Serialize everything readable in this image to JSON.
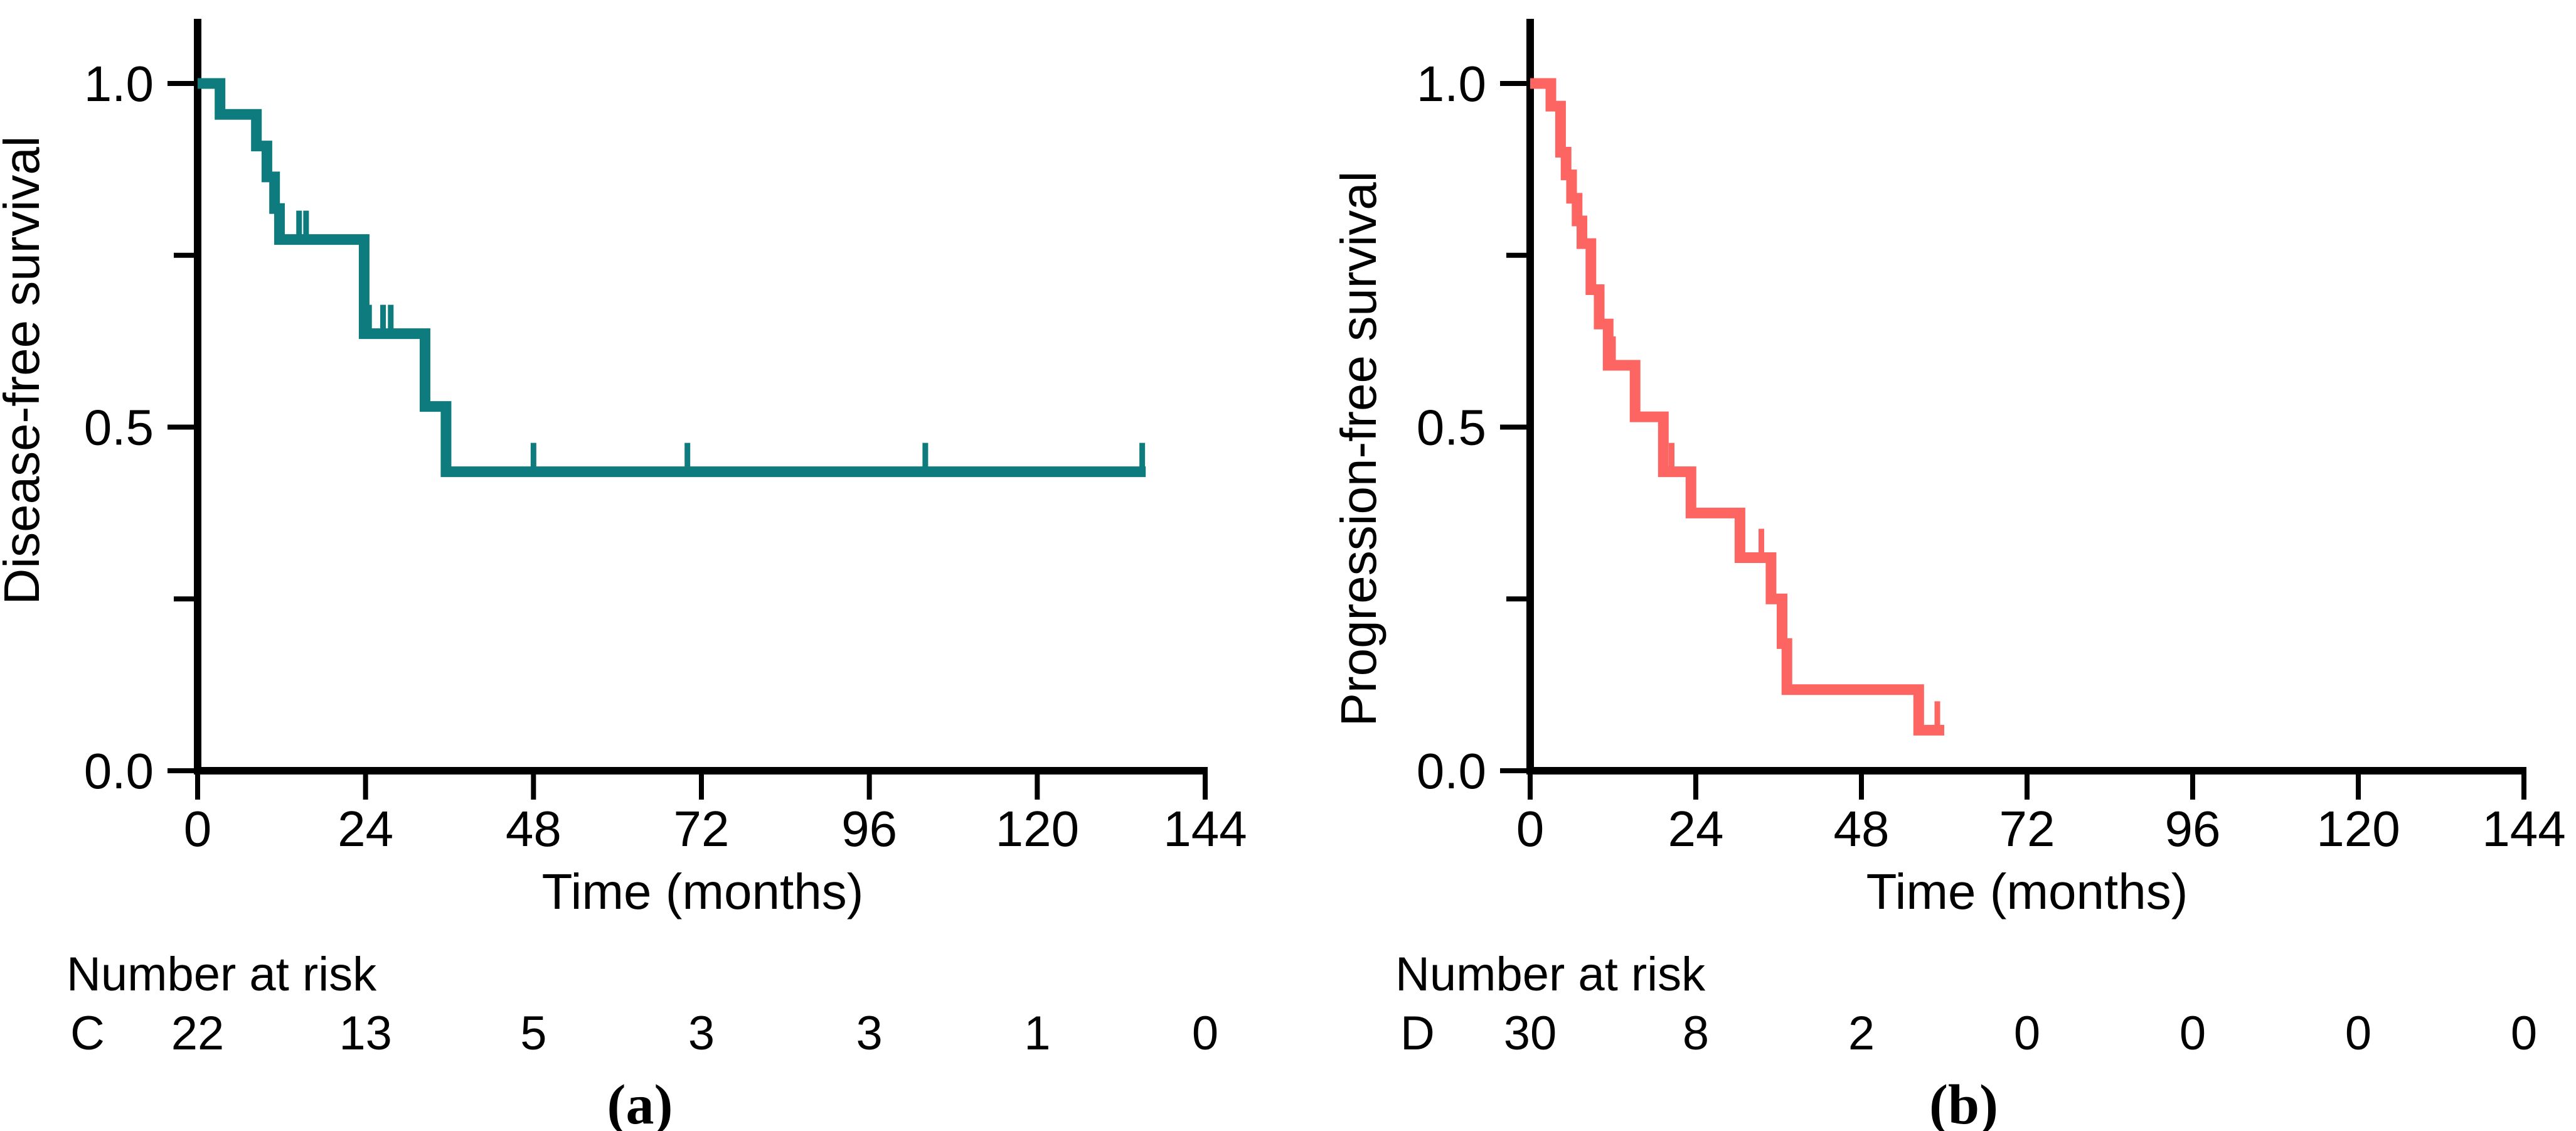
{
  "figure": {
    "background": "#ffffff",
    "axis_color": "#000000",
    "text_color": "#000000"
  },
  "chart_data": [
    {
      "type": "line",
      "subtype": "kaplan-meier-step",
      "panel": "left",
      "caption": "(a)",
      "xlabel": "Time (months)",
      "ylabel": "Disease-free survival",
      "xlim": [
        0,
        144
      ],
      "ylim": [
        0.0,
        1.0
      ],
      "x_ticks": [
        0,
        24,
        48,
        72,
        96,
        120,
        144
      ],
      "y_major_ticks": [
        1.0,
        0.5,
        0.0
      ],
      "y_tick_labels": [
        "1.0",
        "0.5",
        "0.0"
      ],
      "y_minor_ticks": [
        0.75,
        0.25
      ],
      "grid": "off",
      "legend": "none",
      "series": [
        {
          "name": "C",
          "color": "#0e7c7e",
          "steps": [
            [
              0,
              1.0
            ],
            [
              3.2,
              0.955
            ],
            [
              8.4,
              0.909
            ],
            [
              9.9,
              0.864
            ],
            [
              11.0,
              0.818
            ],
            [
              11.7,
              0.773
            ],
            [
              23.8,
              0.636
            ],
            [
              32.5,
              0.53
            ],
            [
              35.5,
              0.435
            ]
          ],
          "end_time": 135.5,
          "censor_marks": [
            [
              14.5,
              0.773
            ],
            [
              15.5,
              0.773
            ],
            [
              24.5,
              0.636
            ],
            [
              26.5,
              0.636
            ],
            [
              27.6,
              0.636
            ],
            [
              48,
              0.435
            ],
            [
              70,
              0.435
            ],
            [
              104,
              0.435
            ],
            [
              135,
              0.435
            ]
          ]
        }
      ],
      "number_at_risk": {
        "title": "Number at risk",
        "group": "C",
        "times": [
          0,
          24,
          48,
          72,
          96,
          120,
          144
        ],
        "counts": [
          "22",
          "13",
          "5",
          "3",
          "3",
          "1",
          "0"
        ]
      }
    },
    {
      "type": "line",
      "subtype": "kaplan-meier-step",
      "panel": "right",
      "caption": "(b)",
      "xlabel": "Time (months)",
      "ylabel": "Progression-free survival",
      "xlim": [
        0,
        144
      ],
      "ylim": [
        0.0,
        1.0
      ],
      "x_ticks": [
        0,
        24,
        48,
        72,
        96,
        120,
        144
      ],
      "y_major_ticks": [
        1.0,
        0.5,
        0.0
      ],
      "y_tick_labels": [
        "1.0",
        "0.5",
        "0.0"
      ],
      "y_minor_ticks": [
        0.75,
        0.25
      ],
      "grid": "off",
      "legend": "none",
      "series": [
        {
          "name": "D",
          "color": "#fc6562",
          "steps": [
            [
              0,
              1.0
            ],
            [
              3.0,
              0.967
            ],
            [
              4.4,
              0.9
            ],
            [
              5.2,
              0.867
            ],
            [
              6.0,
              0.833
            ],
            [
              6.8,
              0.8
            ],
            [
              7.5,
              0.767
            ],
            [
              8.8,
              0.7
            ],
            [
              10.0,
              0.65
            ],
            [
              11.3,
              0.59
            ],
            [
              15.2,
              0.515
            ],
            [
              19.3,
              0.435
            ],
            [
              23.3,
              0.375
            ],
            [
              30.4,
              0.31
            ],
            [
              34.9,
              0.25
            ],
            [
              36.5,
              0.185
            ],
            [
              37.2,
              0.118
            ],
            [
              56.3,
              0.059
            ]
          ],
          "end_time": 60,
          "censor_marks": [
            [
              12.0,
              0.59
            ],
            [
              20.5,
              0.435
            ],
            [
              33.5,
              0.31
            ],
            [
              59.0,
              0.059
            ]
          ]
        }
      ],
      "number_at_risk": {
        "title": "Number at risk",
        "group": "D",
        "times": [
          0,
          24,
          48,
          72,
          96,
          120,
          144
        ],
        "counts": [
          "30",
          "8",
          "2",
          "0",
          "0",
          "0",
          "0"
        ]
      }
    }
  ]
}
